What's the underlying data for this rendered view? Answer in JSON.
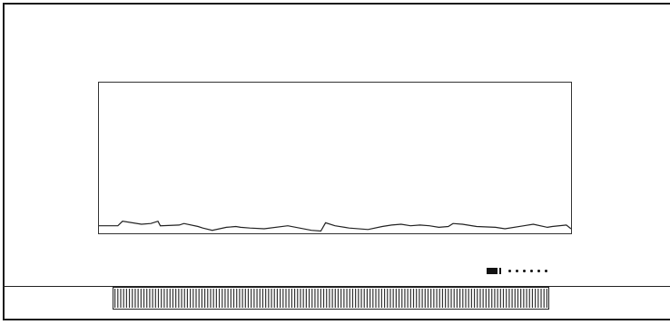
{
  "chart_data": {
    "type": "line",
    "title": "",
    "xlabel": "",
    "ylabel": "",
    "xlim": [
      0,
      100
    ],
    "ylim": [
      0,
      100
    ],
    "grid": false,
    "series": [
      {
        "x": [
          0,
          4,
          5,
          9,
          11,
          12.5,
          13,
          17,
          18,
          21,
          22,
          24,
          27,
          29,
          30,
          32,
          35,
          40,
          45,
          47,
          48,
          50,
          53,
          57,
          60,
          62,
          64,
          66,
          68,
          70,
          72,
          74,
          75,
          77,
          80,
          84,
          86,
          90,
          92,
          95,
          96,
          99,
          100
        ],
        "y": [
          5,
          5,
          8,
          6,
          6.5,
          8,
          5,
          5.5,
          6.5,
          4.5,
          3.5,
          2,
          4,
          4.5,
          4,
          3.5,
          3,
          5,
          2,
          1.5,
          7,
          5,
          3.5,
          2.5,
          4.5,
          5.5,
          6,
          5,
          5.5,
          5,
          4,
          4.5,
          6.5,
          6,
          4.5,
          4,
          3,
          5,
          6,
          4,
          4.5,
          5.5,
          3
        ]
      }
    ]
  },
  "pager": {
    "active_index": 0,
    "total": 7
  },
  "timeline": {
    "tick_count": 150
  }
}
